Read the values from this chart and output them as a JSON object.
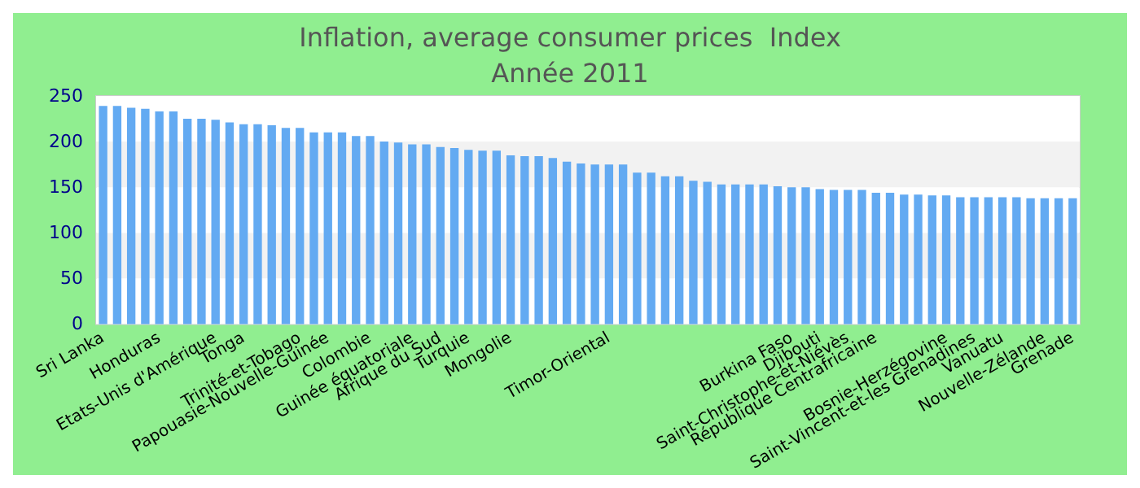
{
  "chart_data": {
    "type": "bar",
    "title": "Inflation, average consumer prices  Index",
    "subtitle": "Année 2011",
    "categories": [
      "Sri Lanka",
      null,
      null,
      null,
      "Honduras",
      null,
      null,
      null,
      "Etats-Unis d'Amérique",
      null,
      "Tonga",
      null,
      null,
      null,
      "Trinité-et-Tobago",
      null,
      "Papouasie-Nouvelle-Guinée",
      null,
      null,
      "Colombie",
      null,
      null,
      "Guinée équatoriale",
      null,
      "Afrique du Sud",
      null,
      "Turquie",
      null,
      null,
      "Mongolie",
      null,
      null,
      null,
      null,
      null,
      null,
      "Timor-Oriental",
      null,
      null,
      null,
      null,
      null,
      null,
      null,
      null,
      null,
      null,
      null,
      null,
      "Burkina Faso",
      null,
      "Djibouti",
      null,
      "Saint-Christophe-et-Niévès",
      null,
      "République Centrafricaine",
      null,
      null,
      null,
      null,
      "Bosnie-Herzégovine",
      null,
      "Saint-Vincent-et-les Grenadines",
      null,
      "Vanuatu",
      null,
      null,
      "Nouvelle-Zélande",
      null,
      "Grenade"
    ],
    "values": [
      239,
      239,
      237,
      236,
      233,
      233,
      225,
      225,
      224,
      221,
      219,
      219,
      218,
      215,
      215,
      210,
      210,
      210,
      206,
      206,
      200,
      199,
      197,
      197,
      194,
      193,
      191,
      190,
      190,
      185,
      184,
      184,
      182,
      178,
      176,
      175,
      175,
      175,
      166,
      166,
      162,
      162,
      157,
      156,
      153,
      153,
      153,
      153,
      151,
      150,
      150,
      148,
      147,
      147,
      147,
      144,
      144,
      142,
      142,
      141,
      141,
      139,
      139,
      139,
      139,
      139,
      138,
      138,
      138,
      138
    ],
    "color": "#63aaf2",
    "ylim": [
      0,
      250
    ],
    "yticks": [
      0,
      50,
      100,
      150,
      200,
      250
    ]
  }
}
